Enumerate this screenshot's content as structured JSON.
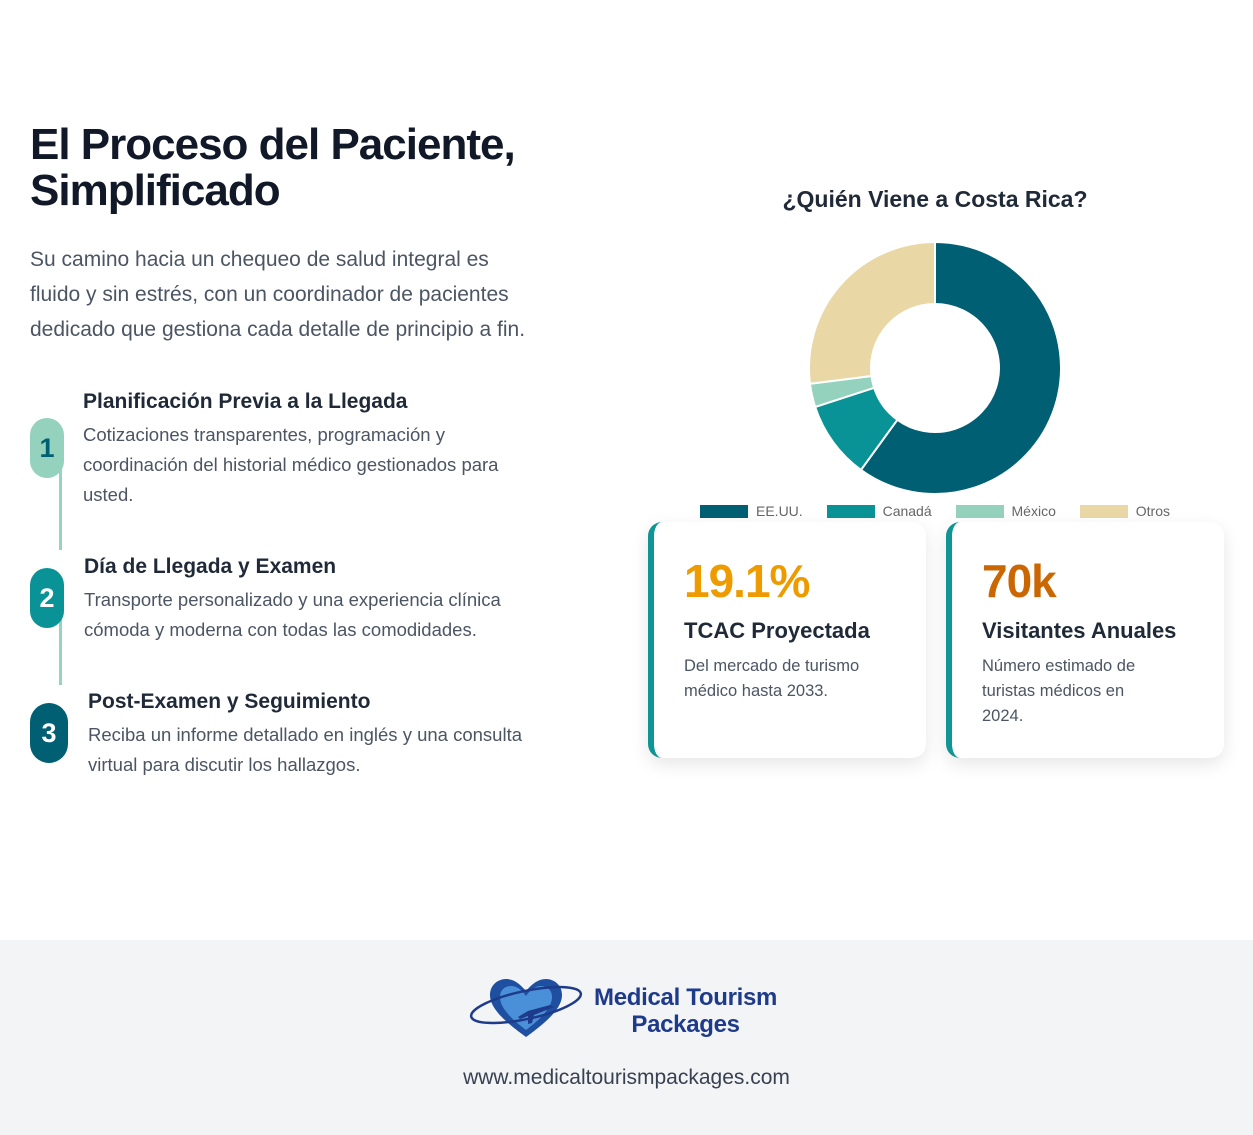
{
  "header": {
    "title_line1": "El Proceso del Paciente,",
    "title_line2": "Simplificado",
    "lead_line1": "Su camino hacia un chequeo de salud integral es",
    "lead_line2": "fluido y sin estrés, con un coordinador de pacientes",
    "lead_line3": "dedicado que gestiona cada detalle de principio a fin."
  },
  "steps": [
    {
      "number": "1",
      "title": "Planificación Previa a la Llegada",
      "desc_line1": "Cotizaciones transparentes, programación y",
      "desc_line2": "coordinación del historial médico gestionados para",
      "desc_line3": "usted."
    },
    {
      "number": "2",
      "title": "Día de Llegada y Examen",
      "desc_line1": "Transporte personalizado y una experiencia clínica",
      "desc_line2": "cómoda y moderna con todas las comodidades."
    },
    {
      "number": "3",
      "title": "Post-Examen y Seguimiento",
      "desc_line1": "Reciba un informe detallado en inglés y una consulta",
      "desc_line2": "virtual para discutir los hallazgos."
    }
  ],
  "chart_data": {
    "type": "pie",
    "title": "¿Quién Viene a Costa Rica?",
    "categories": [
      "EE.UU.",
      "Canadá",
      "México",
      "Otros"
    ],
    "values": [
      60,
      10,
      3,
      27
    ],
    "colors": [
      "#005f73",
      "#0a9396",
      "#94d2bd",
      "#e9d8a6"
    ],
    "donut": true,
    "legend": "bottom"
  },
  "stats": [
    {
      "value": "19.1%",
      "value_color": "#ee9b00",
      "title": "TCAC Proyectada",
      "desc_line1": "Del mercado de turismo",
      "desc_line2": "médico hasta 2033."
    },
    {
      "value": "70k",
      "value_color": "#ca6702",
      "title": "Visitantes Anuales",
      "desc_line1": "Número estimado de",
      "desc_line2": "turistas médicos en",
      "desc_line3": "2024."
    }
  ],
  "footer": {
    "logo_line1": "Medical Tourism",
    "logo_line2": "Packages",
    "url": "www.medicaltourismpackages.com"
  },
  "colors": {
    "step1": "#94d2bd",
    "step2": "#0a9396",
    "step3": "#005f73",
    "accent": "#0e9594"
  }
}
